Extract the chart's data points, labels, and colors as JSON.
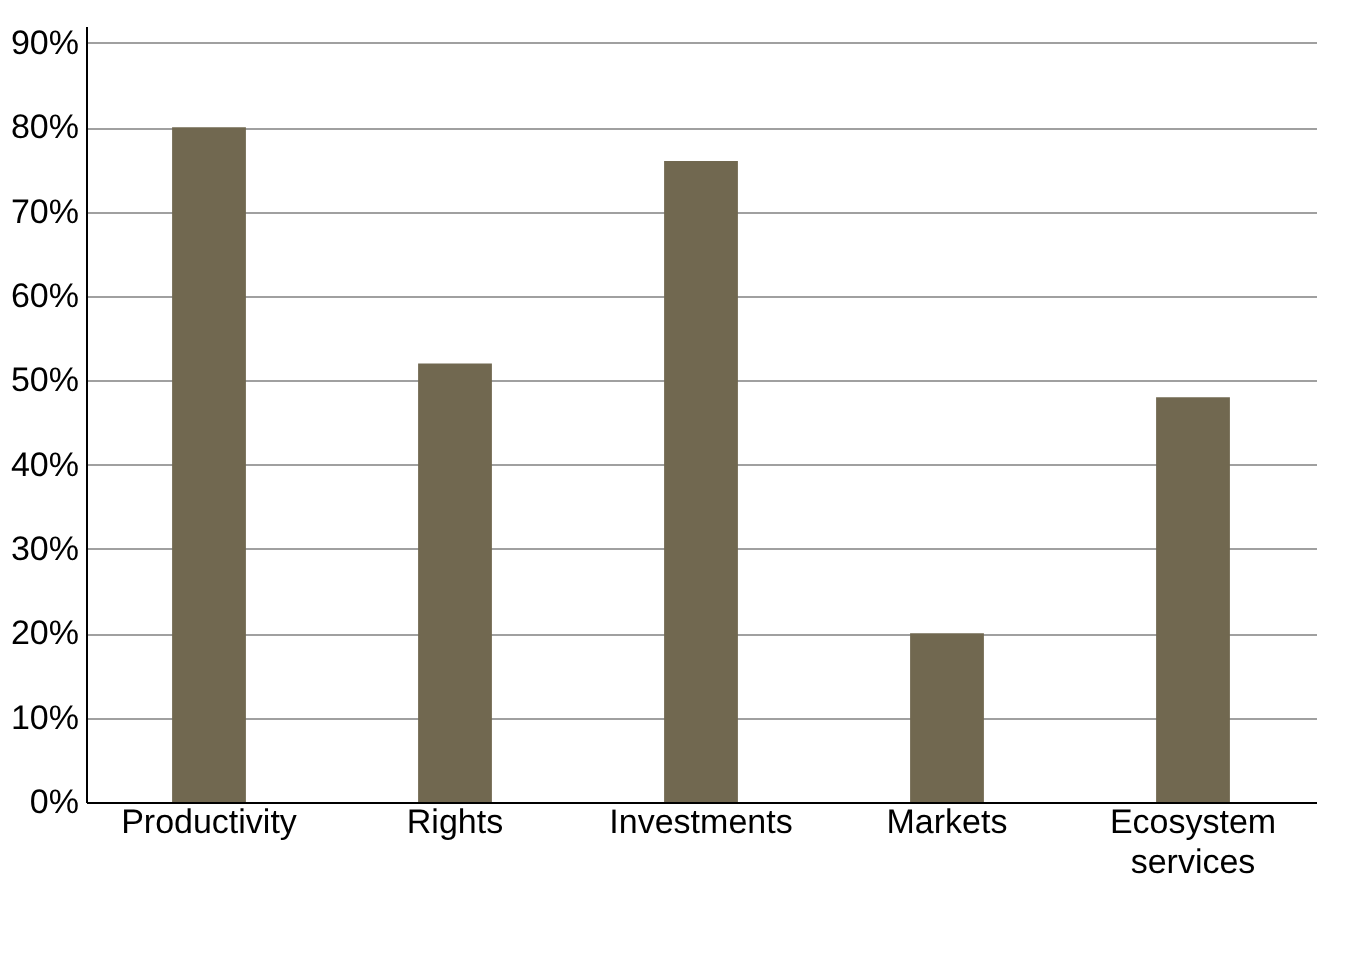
{
  "chart_data": {
    "type": "bar",
    "categories": [
      "Productivity",
      "Rights",
      "Investments",
      "Markets",
      "Ecosystem services"
    ],
    "values": [
      80,
      52,
      76,
      20,
      48
    ],
    "color": "#716850",
    "ylim": [
      0,
      92
    ],
    "yticks": [
      {
        "value": 0,
        "label": "0%"
      },
      {
        "value": 10,
        "label": "10%"
      },
      {
        "value": 20,
        "label": "20%"
      },
      {
        "value": 30,
        "label": "30%"
      },
      {
        "value": 40,
        "label": "40%"
      },
      {
        "value": 50,
        "label": "50%"
      },
      {
        "value": 60,
        "label": "60%"
      },
      {
        "value": 70,
        "label": "70%"
      },
      {
        "value": 80,
        "label": "80%"
      },
      {
        "value": 90,
        "label": "90%"
      }
    ],
    "grid": "y"
  }
}
